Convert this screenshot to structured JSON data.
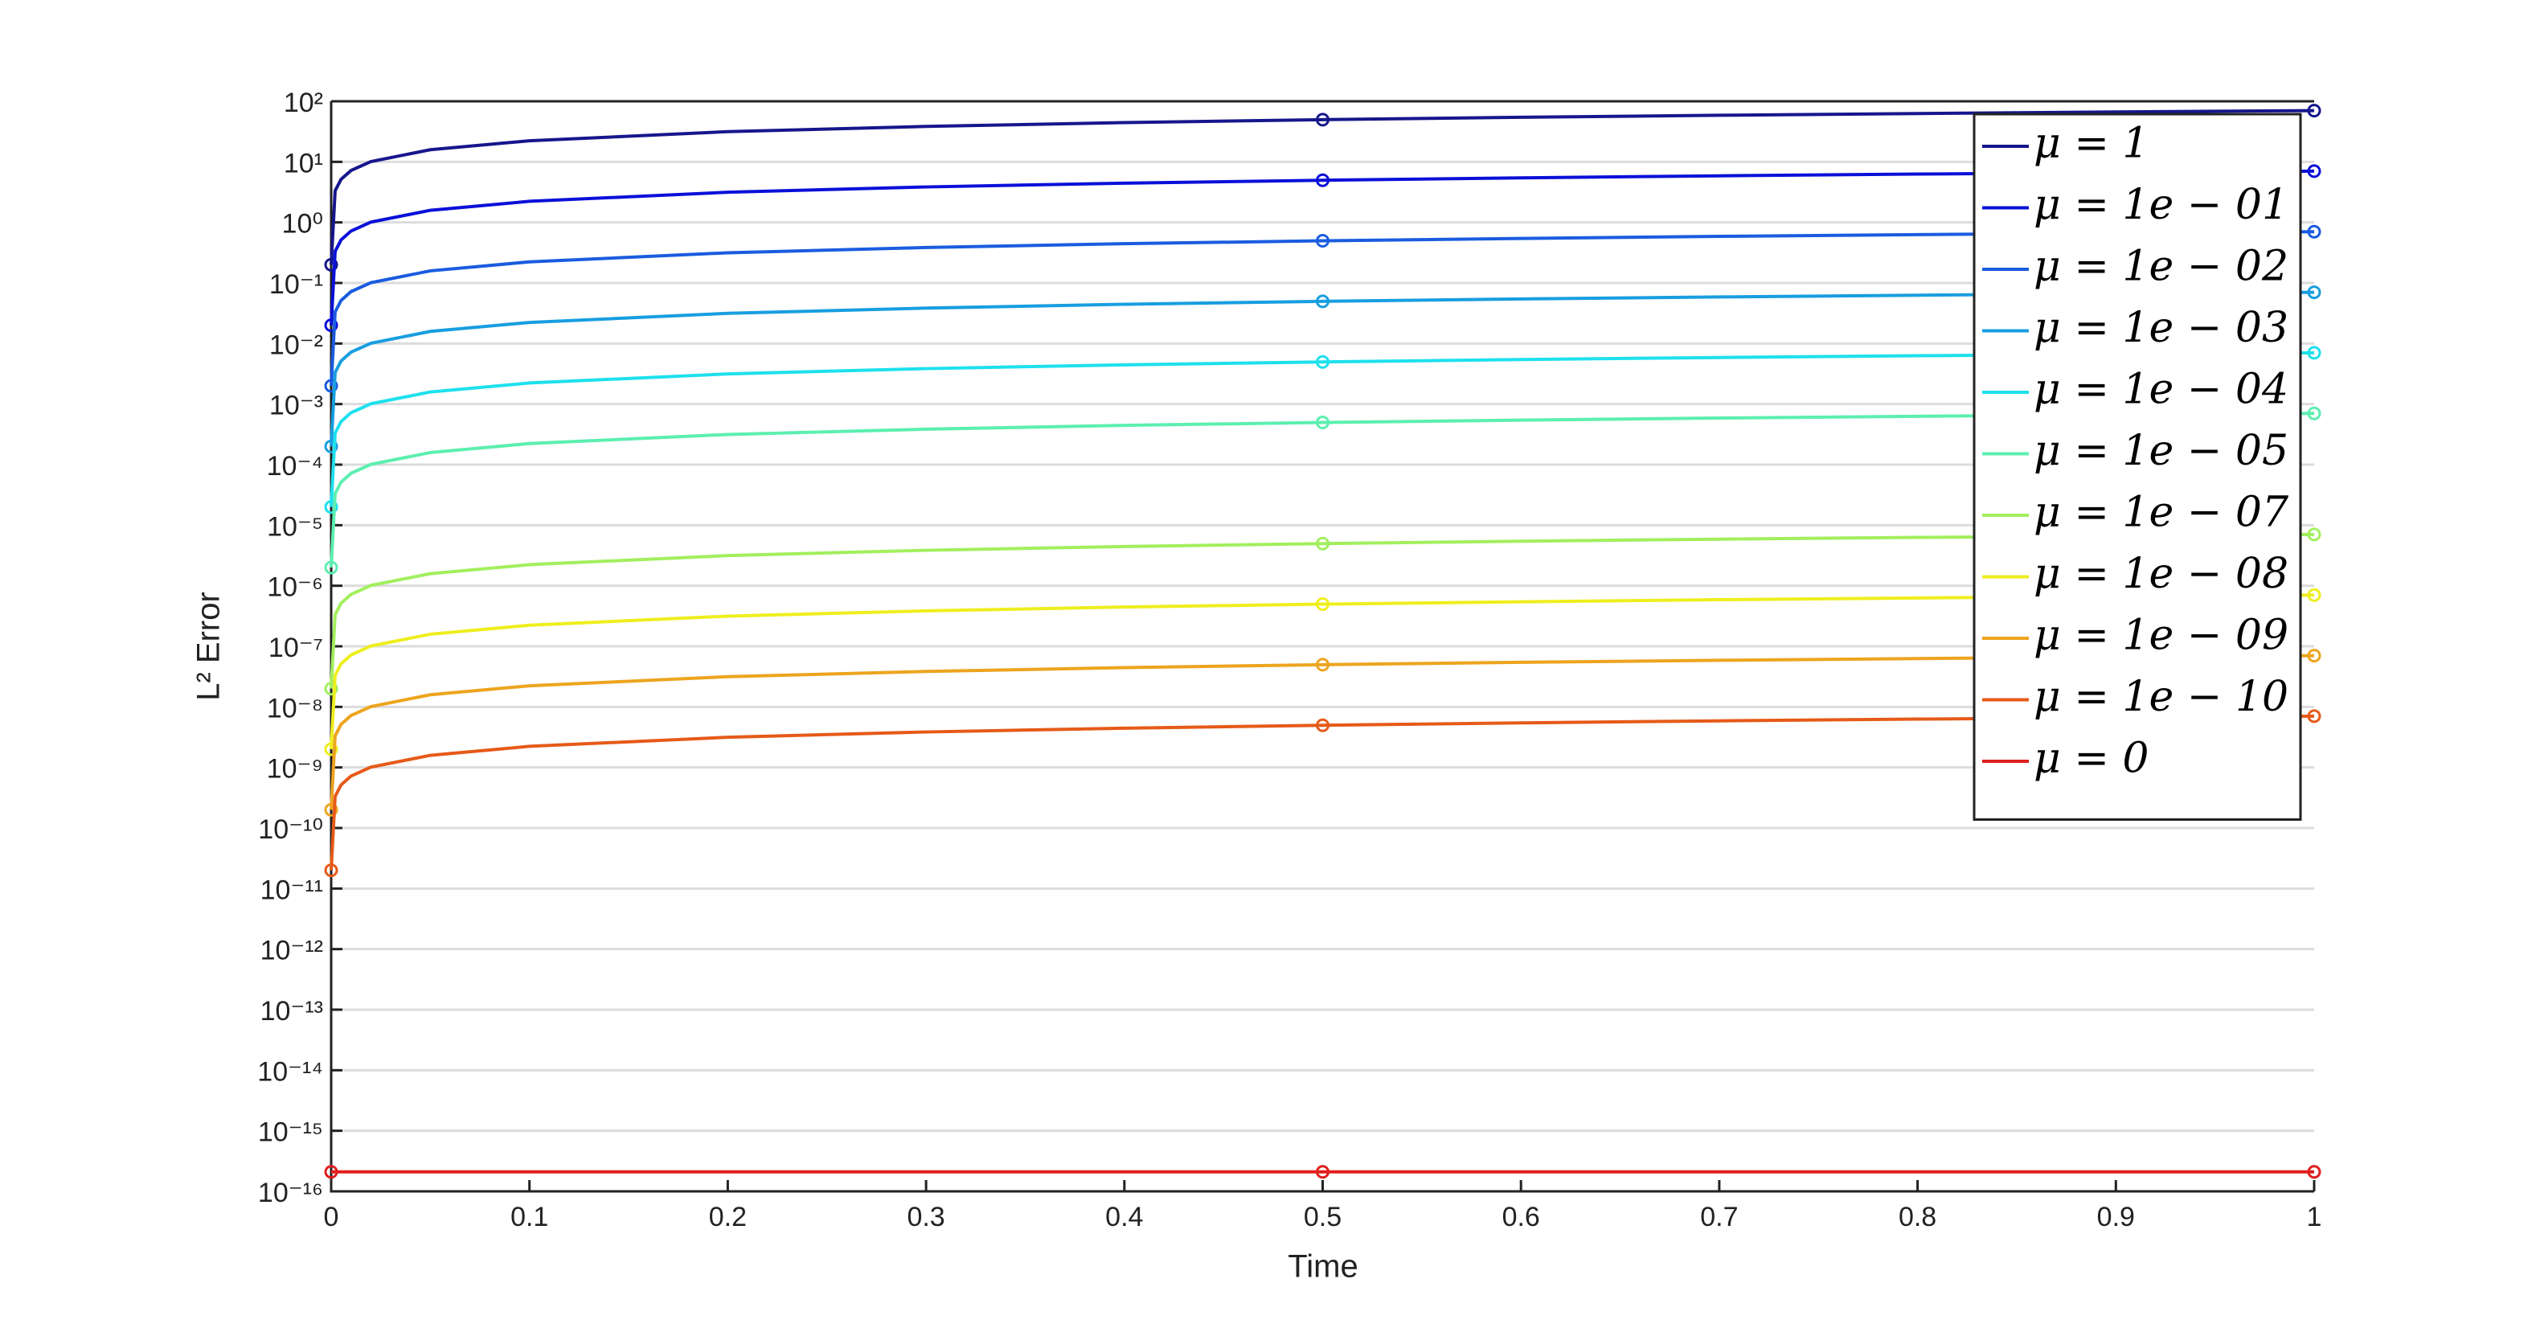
{
  "chart_data": {
    "type": "line",
    "yscale": "log",
    "grid": true,
    "legend_position": "upper right",
    "xlabel": "Time",
    "ylabel": "L² Error",
    "x": [
      0,
      0.002,
      0.005,
      0.01,
      0.02,
      0.05,
      0.1,
      0.2,
      0.3,
      0.4,
      0.5,
      0.6,
      0.7,
      0.8,
      0.9,
      1
    ],
    "marker_x": [
      0,
      0.5,
      1
    ],
    "xlim": [
      0,
      1
    ],
    "xticks": [
      0,
      0.1,
      0.2,
      0.3,
      0.4,
      0.5,
      0.6,
      0.7,
      0.8,
      0.9,
      1
    ],
    "ylim": [
      1e-16,
      100
    ],
    "yticks": [
      {
        "value": 1e-16,
        "label": "10⁻¹⁶"
      },
      {
        "value": 1e-15,
        "label": "10⁻¹⁵"
      },
      {
        "value": 1e-14,
        "label": "10⁻¹⁴"
      },
      {
        "value": 1e-13,
        "label": "10⁻¹³"
      },
      {
        "value": 1e-12,
        "label": "10⁻¹²"
      },
      {
        "value": 1e-11,
        "label": "10⁻¹¹"
      },
      {
        "value": 1e-10,
        "label": "10⁻¹⁰"
      },
      {
        "value": 1e-09,
        "label": "10⁻⁹"
      },
      {
        "value": 1e-08,
        "label": "10⁻⁸"
      },
      {
        "value": 1e-07,
        "label": "10⁻⁷"
      },
      {
        "value": 1e-06,
        "label": "10⁻⁶"
      },
      {
        "value": 1e-05,
        "label": "10⁻⁵"
      },
      {
        "value": 0.0001,
        "label": "10⁻⁴"
      },
      {
        "value": 0.001,
        "label": "10⁻³"
      },
      {
        "value": 0.01,
        "label": "10⁻²"
      },
      {
        "value": 0.1,
        "label": "10⁻¹"
      },
      {
        "value": 1,
        "label": "10⁰"
      },
      {
        "value": 10,
        "label": "10¹"
      },
      {
        "value": 100,
        "label": "10²"
      }
    ],
    "series": [
      {
        "name": "μ = 1",
        "color": "#16168c",
        "values": [
          0.2,
          3.33,
          5.15,
          7.2,
          10.1,
          15.85,
          22.3,
          31.5,
          38.5,
          44.5,
          49.7,
          54.4,
          58.8,
          62.8,
          66.6,
          70.2
        ]
      },
      {
        "name": "μ = 1e − 01",
        "color": "#0a10d8",
        "values": [
          0.02,
          0.333,
          0.515,
          0.72,
          1.01,
          1.585,
          2.23,
          3.15,
          3.85,
          4.45,
          4.97,
          5.44,
          5.88,
          6.28,
          6.66,
          7.02
        ]
      },
      {
        "name": "μ = 1e − 02",
        "color": "#1a5ce0",
        "values": [
          0.002,
          0.0333,
          0.0515,
          0.072,
          0.101,
          0.1585,
          0.223,
          0.315,
          0.385,
          0.445,
          0.497,
          0.544,
          0.588,
          0.628,
          0.666,
          0.702
        ]
      },
      {
        "name": "μ = 1e − 03",
        "color": "#189ee0",
        "values": [
          0.0002,
          0.00333,
          0.00515,
          0.0072,
          0.0101,
          0.01585,
          0.0223,
          0.0315,
          0.0385,
          0.0445,
          0.0497,
          0.0544,
          0.0588,
          0.0628,
          0.0666,
          0.0702
        ]
      },
      {
        "name": "μ = 1e − 04",
        "color": "#1ee0ee",
        "values": [
          2e-05,
          0.000333,
          0.000515,
          0.00072,
          0.00101,
          0.001585,
          0.00223,
          0.00315,
          0.00385,
          0.00445,
          0.00497,
          0.00544,
          0.00588,
          0.00628,
          0.00666,
          0.00702
        ]
      },
      {
        "name": "μ = 1e − 05",
        "color": "#5cefb0",
        "values": [
          2e-06,
          3.33e-05,
          5.15e-05,
          7.2e-05,
          0.000101,
          0.0001585,
          0.000223,
          0.000315,
          0.000385,
          0.000445,
          0.000497,
          0.000544,
          0.000588,
          0.000628,
          0.000666,
          0.000702
        ]
      },
      {
        "name": "μ = 1e − 07",
        "color": "#a2ef5e",
        "values": [
          2e-08,
          3.33e-07,
          5.15e-07,
          7.2e-07,
          1.01e-06,
          1.585e-06,
          2.23e-06,
          3.15e-06,
          3.85e-06,
          4.45e-06,
          4.97e-06,
          5.44e-06,
          5.88e-06,
          6.28e-06,
          6.66e-06,
          7.02e-06
        ]
      },
      {
        "name": "μ = 1e − 08",
        "color": "#eeee1e",
        "values": [
          2e-09,
          3.33e-08,
          5.15e-08,
          7.2e-08,
          1.01e-07,
          1.585e-07,
          2.23e-07,
          3.15e-07,
          3.85e-07,
          4.45e-07,
          4.97e-07,
          5.44e-07,
          5.88e-07,
          6.28e-07,
          6.66e-07,
          7.02e-07
        ]
      },
      {
        "name": "μ = 1e − 09",
        "color": "#eda41e",
        "values": [
          2e-10,
          3.33e-09,
          5.15e-09,
          7.2e-09,
          1.01e-08,
          1.585e-08,
          2.23e-08,
          3.15e-08,
          3.85e-08,
          4.45e-08,
          4.97e-08,
          5.44e-08,
          5.88e-08,
          6.28e-08,
          6.66e-08,
          7.02e-08
        ]
      },
      {
        "name": "μ = 1e − 10",
        "color": "#e65a18",
        "values": [
          2e-11,
          3.33e-10,
          5.15e-10,
          7.2e-10,
          1.01e-09,
          1.585e-09,
          2.23e-09,
          3.15e-09,
          3.85e-09,
          4.45e-09,
          4.97e-09,
          5.44e-09,
          5.88e-09,
          6.28e-09,
          6.66e-09,
          7.02e-09
        ]
      },
      {
        "name": "μ = 0",
        "color": "#e01e1e",
        "values": [
          2.1e-16,
          2.1e-16,
          2.1e-16,
          2.1e-16,
          2.1e-16,
          2.1e-16,
          2.1e-16,
          2.1e-16,
          2.1e-16,
          2.1e-16,
          2.1e-16,
          2.1e-16,
          2.1e-16,
          2.1e-16,
          2.1e-16,
          2.1e-16
        ]
      }
    ]
  }
}
